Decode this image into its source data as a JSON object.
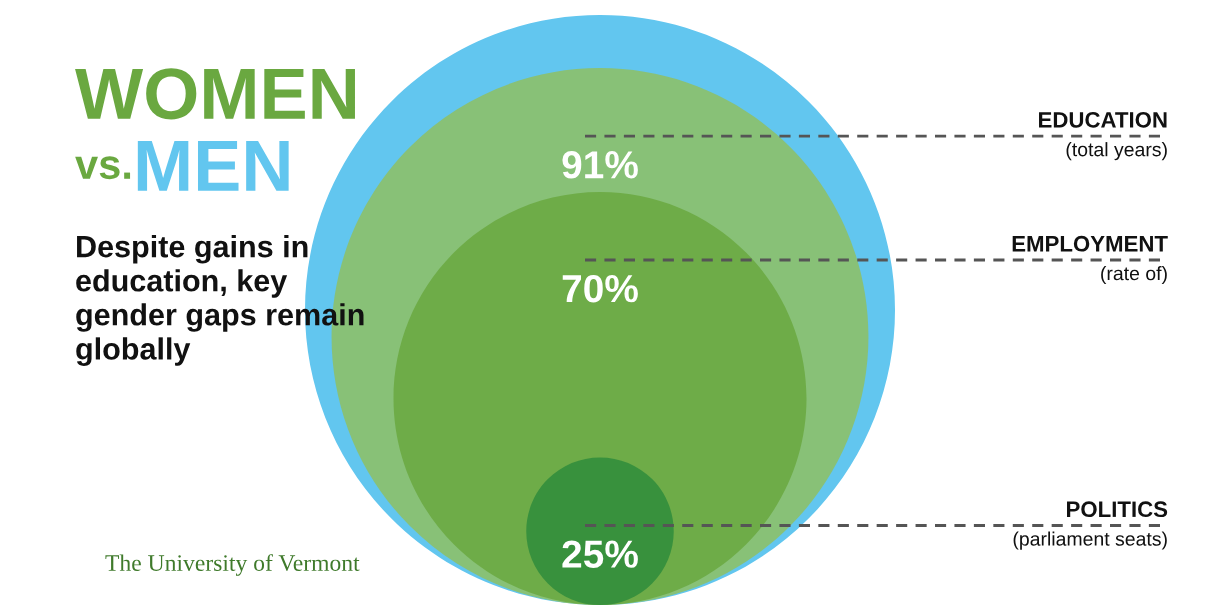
{
  "chart_data": {
    "type": "other",
    "title": "WOMEN vs. MEN",
    "subtitle": "Despite gains in education, key gender gaps remain globally",
    "categories": [
      "EDUCATION\n(total years)",
      "EMPLOYMENT\n(rate of)",
      "POLITICS\n(parliament seats)"
    ],
    "colors": [
      "#8fbf62",
      "#6aa840",
      "#2f8c3c"
    ],
    "values": [
      91,
      70,
      25
    ],
    "value_labels": [
      "91%",
      "70%",
      "25%"
    ],
    "annotations": [
      "The University of Vermont"
    ]
  }
}
